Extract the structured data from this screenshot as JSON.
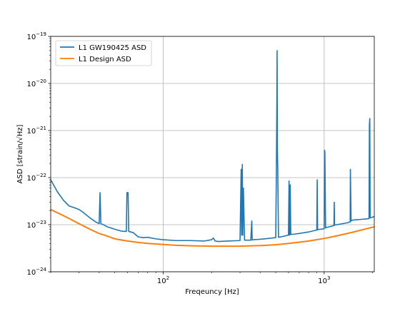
{
  "chart_data": {
    "type": "line",
    "title": "",
    "xlabel": "Freqeuncy [Hz]",
    "ylabel": "ASD [strain/√Hz]",
    "xscale": "log",
    "yscale": "log",
    "xlim": [
      20,
      2048
    ],
    "ylim": [
      1e-24,
      1e-19
    ],
    "grid": true,
    "legend_position": "top-left",
    "x_ticks": [
      {
        "value": 100,
        "base": "10",
        "exp": "2"
      },
      {
        "value": 1000,
        "base": "10",
        "exp": "3"
      }
    ],
    "y_ticks": [
      {
        "value": 1e-24,
        "base": "10",
        "exp": "−24"
      },
      {
        "value": 1e-23,
        "base": "10",
        "exp": "−23"
      },
      {
        "value": 1e-22,
        "base": "10",
        "exp": "−22"
      },
      {
        "value": 1e-21,
        "base": "10",
        "exp": "−21"
      },
      {
        "value": 1e-20,
        "base": "10",
        "exp": "−20"
      },
      {
        "value": 1e-19,
        "base": "10",
        "exp": "−19"
      }
    ],
    "series": [
      {
        "name": "L1 GW190425 ASD",
        "color": "#1f77b4",
        "x": [
          20,
          22,
          24,
          26,
          28,
          30,
          32,
          35,
          38,
          40,
          40.5,
          41,
          42,
          45,
          50,
          55,
          59,
          59.5,
          60.5,
          61,
          65,
          70,
          75,
          80,
          90,
          100,
          120,
          150,
          180,
          200,
          205,
          210,
          220,
          250,
          300,
          305,
          307,
          310,
          312,
          315,
          320,
          350,
          355,
          357,
          360,
          400,
          450,
          500,
          505,
          508,
          510,
          512,
          515,
          520,
          550,
          600,
          605,
          610,
          615,
          620,
          650,
          700,
          800,
          900,
          905,
          910,
          920,
          1000,
          1005,
          1010,
          1020,
          1030,
          1100,
          1150,
          1155,
          1160,
          1200,
          1400,
          1450,
          1455,
          1460,
          1470,
          1500,
          1800,
          1900,
          1910,
          1920,
          1930,
          1950,
          2000,
          2048
        ],
        "y": [
          9e-23,
          5e-23,
          3.3e-23,
          2.5e-23,
          2.3e-23,
          2.1e-23,
          1.8e-23,
          1.4e-23,
          1.15e-23,
          1.05e-23,
          4.8e-23,
          1.05e-23,
          1.02e-23,
          9e-24,
          8e-24,
          7.3e-24,
          7.2e-24,
          4.8e-23,
          4.8e-23,
          7.2e-24,
          6.8e-24,
          5.5e-24,
          5.3e-24,
          5.4e-24,
          5e-24,
          4.8e-24,
          4.6e-24,
          4.6e-24,
          4.5e-24,
          4.8e-24,
          5.2e-24,
          4.5e-24,
          4.4e-24,
          4.5e-24,
          4.6e-24,
          1.5e-22,
          6e-24,
          1.9e-22,
          6e-24,
          6e-23,
          4.7e-24,
          4.7e-24,
          1.2e-23,
          4.7e-24,
          4.8e-24,
          4.9e-24,
          5.1e-24,
          5.3e-24,
          1.5e-22,
          3e-21,
          5e-20,
          4e-22,
          1.5e-22,
          5.4e-24,
          5.6e-24,
          6e-24,
          8.5e-23,
          6e-24,
          7e-23,
          6.2e-24,
          6.3e-24,
          6.5e-24,
          7e-24,
          7.7e-24,
          9e-23,
          7.8e-24,
          7.9e-24,
          8.2e-24,
          3.8e-22,
          3.5e-22,
          8.5e-24,
          8.7e-24,
          9.2e-24,
          9.6e-24,
          3e-23,
          9.8e-24,
          1e-23,
          1.1e-23,
          1.15e-23,
          1.5e-22,
          6e-23,
          1.2e-23,
          1.25e-23,
          1.32e-23,
          1.35e-23,
          1.3e-21,
          1.8e-21,
          1.4e-23,
          1.4e-23,
          1.45e-23,
          1.5e-23
        ]
      },
      {
        "name": "L1 Design ASD",
        "color": "#ff7f0e",
        "x": [
          20,
          25,
          30,
          35,
          40,
          45,
          50,
          60,
          70,
          80,
          100,
          120,
          150,
          200,
          250,
          300,
          400,
          500,
          600,
          700,
          800,
          1000,
          1200,
          1500,
          1800,
          2048
        ],
        "y": [
          2.1e-23,
          1.45e-23,
          1.05e-23,
          8e-24,
          6.5e-24,
          5.7e-24,
          5e-24,
          4.5e-24,
          4.2e-24,
          4e-24,
          3.8e-24,
          3.65e-24,
          3.55e-24,
          3.5e-24,
          3.5e-24,
          3.5e-24,
          3.6e-24,
          3.75e-24,
          4e-24,
          4.25e-24,
          4.5e-24,
          5.1e-24,
          5.8e-24,
          6.9e-24,
          8.1e-24,
          9e-24
        ]
      }
    ]
  }
}
